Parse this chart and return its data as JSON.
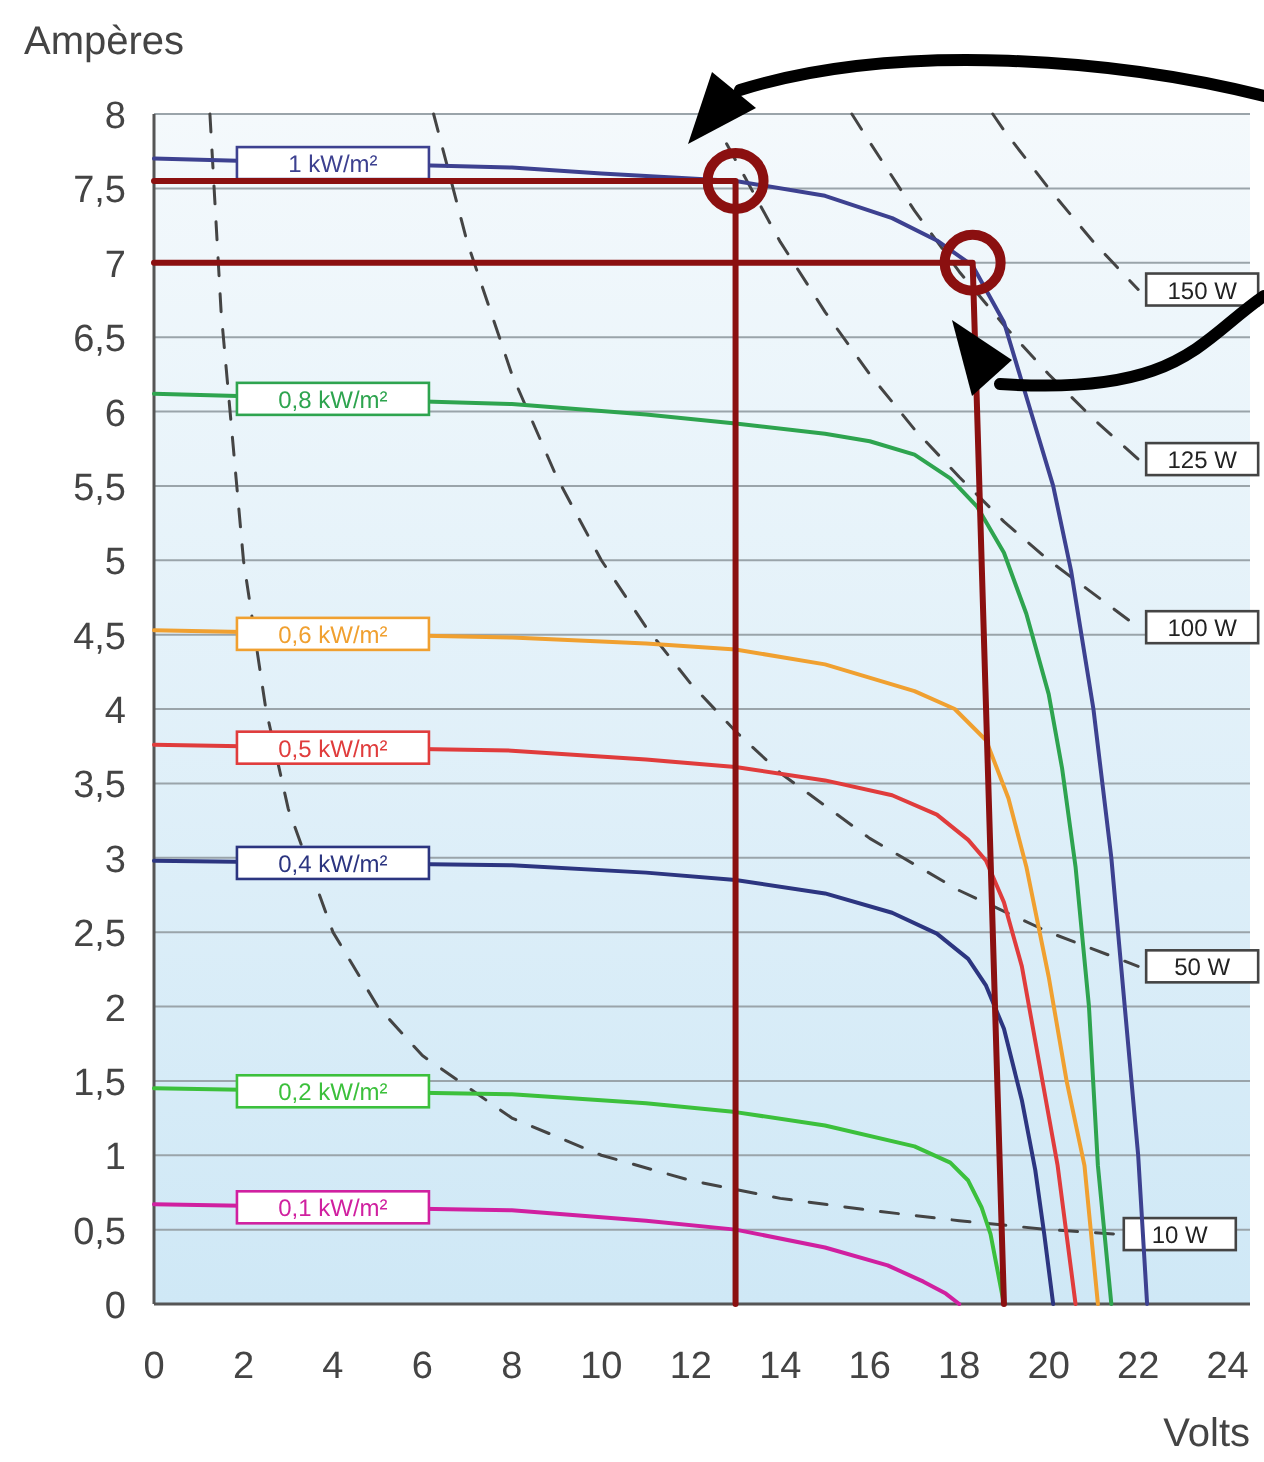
{
  "chart_data": {
    "type": "line",
    "xlabel": "Volts",
    "ylabel": "Ampères",
    "xlim": [
      0,
      24.5
    ],
    "ylim": [
      0,
      8
    ],
    "xticks": [
      0,
      2,
      4,
      6,
      8,
      10,
      12,
      14,
      16,
      18,
      20,
      22,
      24
    ],
    "yticks": [
      0,
      {
        "value": 0.5,
        "label": "0,5"
      },
      1,
      {
        "value": 1.5,
        "label": "1,5"
      },
      2,
      {
        "value": 2.5,
        "label": "2,5"
      },
      3,
      {
        "value": 3.5,
        "label": "3,5"
      },
      4,
      {
        "value": 4.5,
        "label": "4,5"
      },
      5,
      {
        "value": 5.5,
        "label": "5,5"
      },
      6,
      {
        "value": 6.5,
        "label": "6,5"
      },
      7,
      {
        "value": 7.5,
        "label": "7,5"
      },
      8
    ],
    "grid": "y",
    "line_style": "solid",
    "series": [
      {
        "name": "10 W",
        "color": "#444444",
        "line_style": "dashed",
        "x": [
          1.25,
          1.5,
          2,
          2.5,
          3,
          4,
          5,
          6,
          8,
          10,
          12,
          14,
          16,
          18,
          20,
          21.5
        ],
        "values": [
          8,
          6.67,
          5,
          4,
          3.33,
          2.5,
          2,
          1.67,
          1.25,
          1,
          0.83,
          0.71,
          0.63,
          0.56,
          0.5,
          0.47
        ]
      },
      {
        "name": "50 W",
        "color": "#444444",
        "line_style": "dashed",
        "x": [
          6.25,
          7,
          8,
          9,
          10,
          11,
          12,
          13,
          14,
          16,
          18,
          20,
          22
        ],
        "values": [
          8,
          7.14,
          6.25,
          5.56,
          5,
          4.55,
          4.17,
          3.85,
          3.57,
          3.13,
          2.78,
          2.5,
          2.27
        ]
      },
      {
        "name": "100 W",
        "color": "#444444",
        "line_style": "dashed",
        "x": [
          12.8,
          14,
          15,
          16,
          17,
          18,
          19,
          20,
          22
        ],
        "values": [
          7.8,
          7.14,
          6.67,
          6.25,
          5.88,
          5.56,
          5.26,
          5,
          4.55
        ]
      },
      {
        "name": "125 W",
        "color": "#444444",
        "line_style": "dashed",
        "x": [
          15.6,
          16,
          17,
          18,
          19,
          20,
          21,
          22
        ],
        "values": [
          8,
          7.81,
          7.35,
          6.94,
          6.58,
          6.25,
          5.95,
          5.68
        ]
      },
      {
        "name": "150 W",
        "color": "#444444",
        "line_style": "dashed",
        "x": [
          18.75,
          19,
          20,
          21,
          22
        ],
        "values": [
          8,
          7.89,
          7.5,
          7.14,
          6.82
        ]
      },
      {
        "name": "1 kW/m²",
        "color": "#3d4190",
        "x": [
          0,
          8,
          10,
          13,
          15,
          16.5,
          17.5,
          18.3,
          19,
          19.6,
          20.1,
          20.5,
          21,
          21.4,
          21.7,
          22,
          22.2
        ],
        "values": [
          7.7,
          7.64,
          7.6,
          7.55,
          7.45,
          7.3,
          7.15,
          6.98,
          6.6,
          6,
          5.5,
          4.93,
          4,
          3,
          2,
          1,
          0
        ]
      },
      {
        "name": "0,8 kW/m²",
        "color": "#2ea44f",
        "x": [
          0,
          8,
          11,
          13,
          15,
          16,
          17,
          17.8,
          18.4,
          19,
          19.5,
          20,
          20.3,
          20.6,
          20.9,
          21.1,
          21.4
        ],
        "values": [
          6.12,
          6.05,
          5.98,
          5.92,
          5.85,
          5.8,
          5.71,
          5.55,
          5.36,
          5.05,
          4.64,
          4.1,
          3.6,
          2.94,
          2,
          0.93,
          0
        ]
      },
      {
        "name": "0,6 kW/m²",
        "color": "#f0a030",
        "x": [
          0,
          8,
          11,
          13,
          15,
          17,
          17.9,
          18.6,
          19.1,
          19.5,
          20,
          20.4,
          20.8,
          21.1
        ],
        "values": [
          4.53,
          4.48,
          4.44,
          4.4,
          4.3,
          4.12,
          4,
          3.79,
          3.4,
          2.94,
          2.2,
          1.5,
          0.93,
          0
        ]
      },
      {
        "name": "0,5 kW/m²",
        "color": "#e03c3c",
        "x": [
          0,
          8,
          11,
          13,
          15,
          16.5,
          17.5,
          18.2,
          18.6,
          19,
          19.4,
          19.8,
          20.2,
          20.6
        ],
        "values": [
          3.76,
          3.72,
          3.66,
          3.61,
          3.52,
          3.42,
          3.29,
          3.12,
          2.98,
          2.7,
          2.27,
          1.6,
          0.93,
          0
        ]
      },
      {
        "name": "0,4 kW/m²",
        "color": "#2c3580",
        "x": [
          0,
          8,
          11,
          13,
          15,
          16.5,
          17.5,
          18.2,
          18.6,
          19,
          19.4,
          19.7,
          19.9,
          20.1
        ],
        "values": [
          2.98,
          2.95,
          2.9,
          2.85,
          2.76,
          2.63,
          2.49,
          2.32,
          2.14,
          1.85,
          1.37,
          0.9,
          0.47,
          0
        ]
      },
      {
        "name": "0,2 kW/m²",
        "color": "#3cc03c",
        "x": [
          0,
          8,
          11,
          13,
          15,
          17,
          17.8,
          18.2,
          18.5,
          18.7,
          19
        ],
        "values": [
          1.45,
          1.41,
          1.35,
          1.29,
          1.2,
          1.06,
          0.95,
          0.83,
          0.65,
          0.47,
          0
        ]
      },
      {
        "name": "0,1 kW/m²",
        "color": "#d020a0",
        "x": [
          0,
          8,
          11,
          13,
          15,
          16.4,
          17.2,
          17.7,
          18
        ],
        "values": [
          0.67,
          0.63,
          0.56,
          0.5,
          0.38,
          0.26,
          0.15,
          0.07,
          0
        ]
      },
      {
        "color": "#8b1010",
        "x": [
          0,
          13,
          13
        ],
        "values": [
          7.55,
          7.55,
          0
        ]
      },
      {
        "color": "#8b1010",
        "x": [
          0,
          18.3,
          19
        ],
        "values": [
          7,
          7,
          0
        ]
      },
      {
        "type": "scatter",
        "marker": "circle",
        "color": "#8b1010",
        "x": [
          13,
          18.3
        ],
        "values": [
          7.55,
          7
        ]
      }
    ]
  }
}
